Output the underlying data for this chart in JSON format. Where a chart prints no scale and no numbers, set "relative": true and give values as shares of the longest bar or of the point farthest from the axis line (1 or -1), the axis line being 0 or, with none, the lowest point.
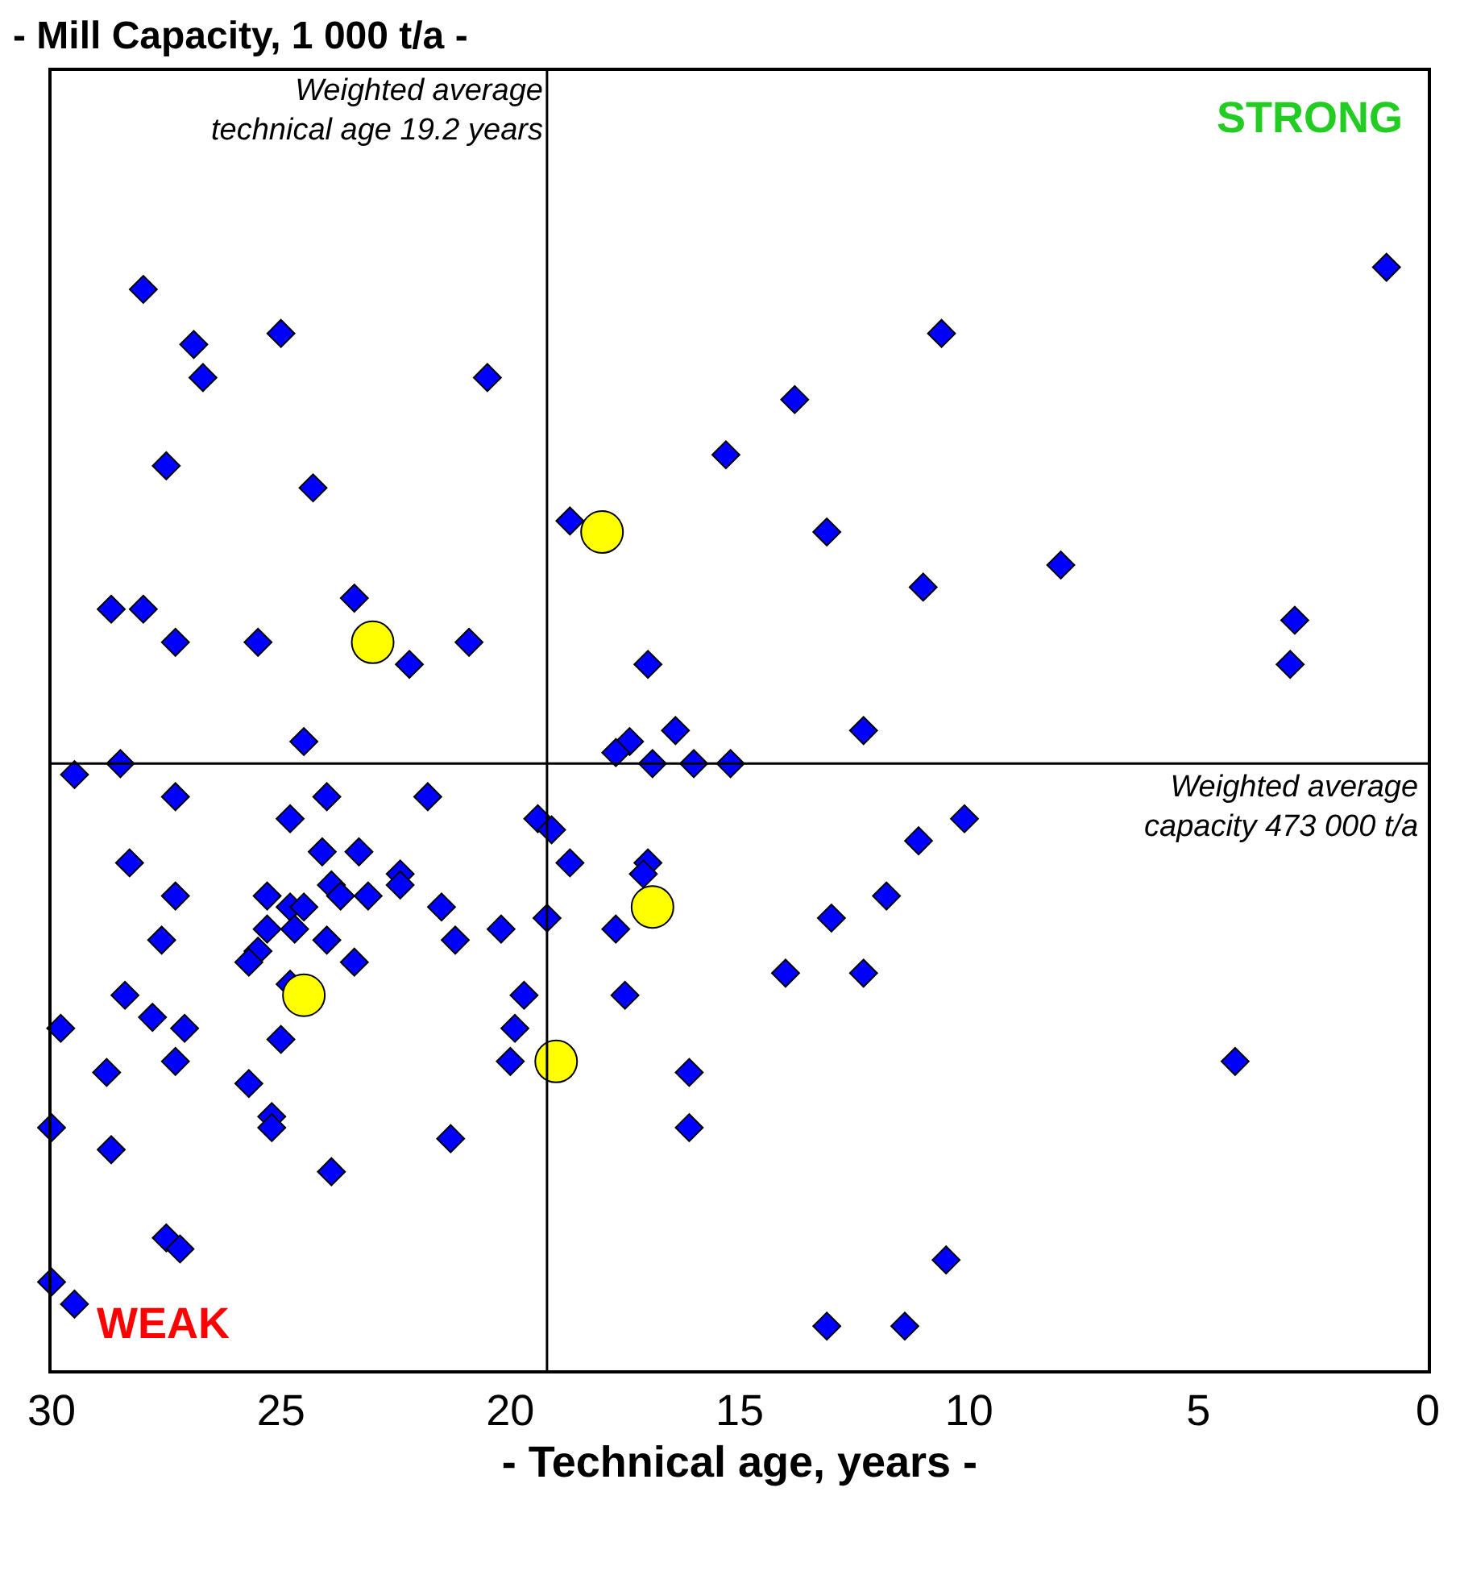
{
  "chart_data": {
    "type": "scatter",
    "relative": true,
    "title": "- Mill Capacity, 1 000 t/a -",
    "xlabel": "- Technical age, years -",
    "xlim": [
      30,
      0
    ],
    "xticks": [
      30,
      25,
      20,
      15,
      10,
      5,
      0
    ],
    "annotations": [
      "STRONG",
      "WEAK"
    ],
    "ref_lines": [
      {
        "axis": "x",
        "value": 19.2,
        "label": "Weighted average\ntechnical age 19.2 years",
        "color": "#000000"
      },
      {
        "axis": "y",
        "value": 0.55,
        "label": "Weighted average\ncapacity 473 000 t/a",
        "color": "#000000"
      }
    ],
    "series": [
      {
        "color": "#0000ff",
        "marker": "diamond",
        "x": [
          0.9,
          28.0,
          25.0,
          26.9,
          10.6,
          26.7,
          20.5,
          13.8,
          27.5,
          15.3,
          24.3,
          18.7,
          13.1,
          8.0,
          23.4,
          11.0,
          28.7,
          28.0,
          27.3,
          25.5,
          20.9,
          22.2,
          17.0,
          2.9,
          3.0,
          24.5,
          16.4,
          12.3,
          17.4,
          17.7,
          16.9,
          16.0,
          28.5,
          15.2,
          29.5,
          27.3,
          24.0,
          21.8,
          24.8,
          10.1,
          19.4,
          19.1,
          11.1,
          17.0,
          28.3,
          24.1,
          23.3,
          18.7,
          17.1,
          22.4,
          23.9,
          22.4,
          25.3,
          27.3,
          24.8,
          24.5,
          23.7,
          23.1,
          21.5,
          11.8,
          13.0,
          19.2,
          24.7,
          25.3,
          27.6,
          20.2,
          17.7,
          24.0,
          21.2,
          25.5,
          25.7,
          23.4,
          14.0,
          12.3,
          28.4,
          24.8,
          19.7,
          17.5,
          27.8,
          19.9,
          27.1,
          29.8,
          25.0,
          27.3,
          20.0,
          25.7,
          28.8,
          16.1,
          4.2,
          25.2,
          30.0,
          28.7,
          25.2,
          21.3,
          16.1,
          23.9,
          27.5,
          27.2,
          10.5,
          30.0,
          29.5,
          13.1,
          11.4
        ],
        "values": [
          1.0,
          0.98,
          0.94,
          0.93,
          0.94,
          0.9,
          0.9,
          0.88,
          0.82,
          0.83,
          0.8,
          0.77,
          0.76,
          0.73,
          0.7,
          0.71,
          0.69,
          0.69,
          0.66,
          0.66,
          0.66,
          0.64,
          0.64,
          0.68,
          0.64,
          0.57,
          0.58,
          0.58,
          0.57,
          0.56,
          0.55,
          0.55,
          0.55,
          0.55,
          0.54,
          0.52,
          0.52,
          0.52,
          0.5,
          0.5,
          0.5,
          0.49,
          0.48,
          0.46,
          0.46,
          0.47,
          0.47,
          0.46,
          0.45,
          0.45,
          0.44,
          0.44,
          0.43,
          0.43,
          0.42,
          0.42,
          0.43,
          0.43,
          0.42,
          0.43,
          0.41,
          0.41,
          0.4,
          0.4,
          0.39,
          0.4,
          0.4,
          0.39,
          0.39,
          0.38,
          0.37,
          0.37,
          0.36,
          0.36,
          0.34,
          0.35,
          0.34,
          0.34,
          0.32,
          0.31,
          0.31,
          0.31,
          0.3,
          0.28,
          0.28,
          0.26,
          0.27,
          0.27,
          0.28,
          0.23,
          0.22,
          0.2,
          0.22,
          0.21,
          0.22,
          0.18,
          0.12,
          0.11,
          0.1,
          0.08,
          0.06,
          0.04,
          0.04
        ]
      },
      {
        "color": "#ffff00",
        "marker": "circle",
        "x": [
          23.0,
          18.0,
          16.9,
          24.5,
          19.0
        ],
        "values": [
          0.66,
          0.76,
          0.42,
          0.34,
          0.28
        ]
      }
    ]
  }
}
